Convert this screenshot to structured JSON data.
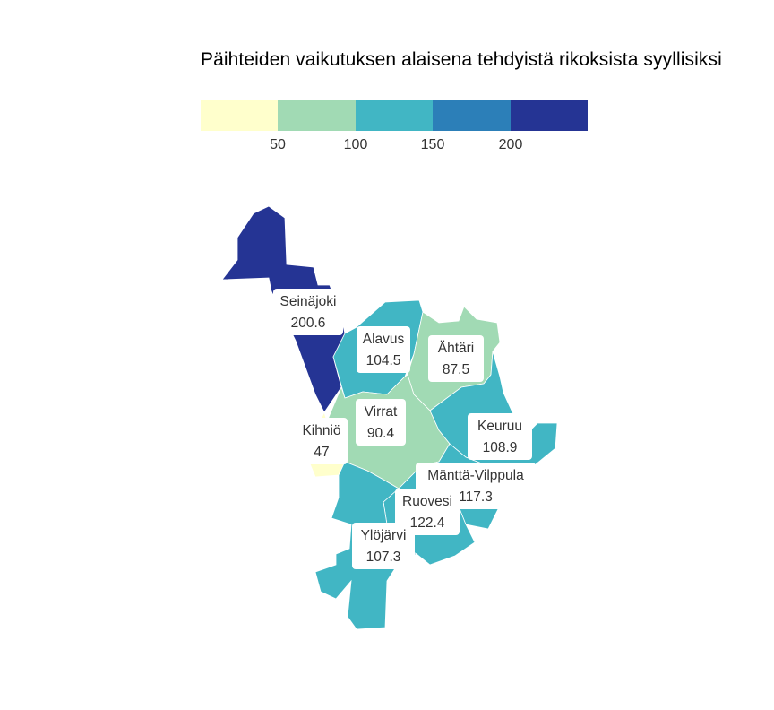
{
  "title": "Päihteiden vaikutuksen alaisena tehdyistä rikoksista syyllisiksi",
  "legend": {
    "colors": [
      "#ffffcc",
      "#a1dab4",
      "#41b6c4",
      "#2c7fb8",
      "#253494"
    ],
    "ticks": [
      "50",
      "100",
      "150",
      "200"
    ]
  },
  "municipalities": [
    {
      "name": "Seinäjoki",
      "value": "200.6",
      "color": "#253494"
    },
    {
      "name": "Alavus",
      "value": "104.5",
      "color": "#41b6c4"
    },
    {
      "name": "Ähtäri",
      "value": "87.5",
      "color": "#a1dab4"
    },
    {
      "name": "Virrat",
      "value": "90.4",
      "color": "#a1dab4"
    },
    {
      "name": "Kihniö",
      "value": "47",
      "color": "#ffffcc"
    },
    {
      "name": "Keuruu",
      "value": "108.9",
      "color": "#41b6c4"
    },
    {
      "name": "Mänttä-Vilppula",
      "value": "117.3",
      "color": "#41b6c4"
    },
    {
      "name": "Ruovesi",
      "value": "122.4",
      "color": "#41b6c4"
    },
    {
      "name": "Ylöjärvi",
      "value": "107.3",
      "color": "#41b6c4"
    }
  ]
}
